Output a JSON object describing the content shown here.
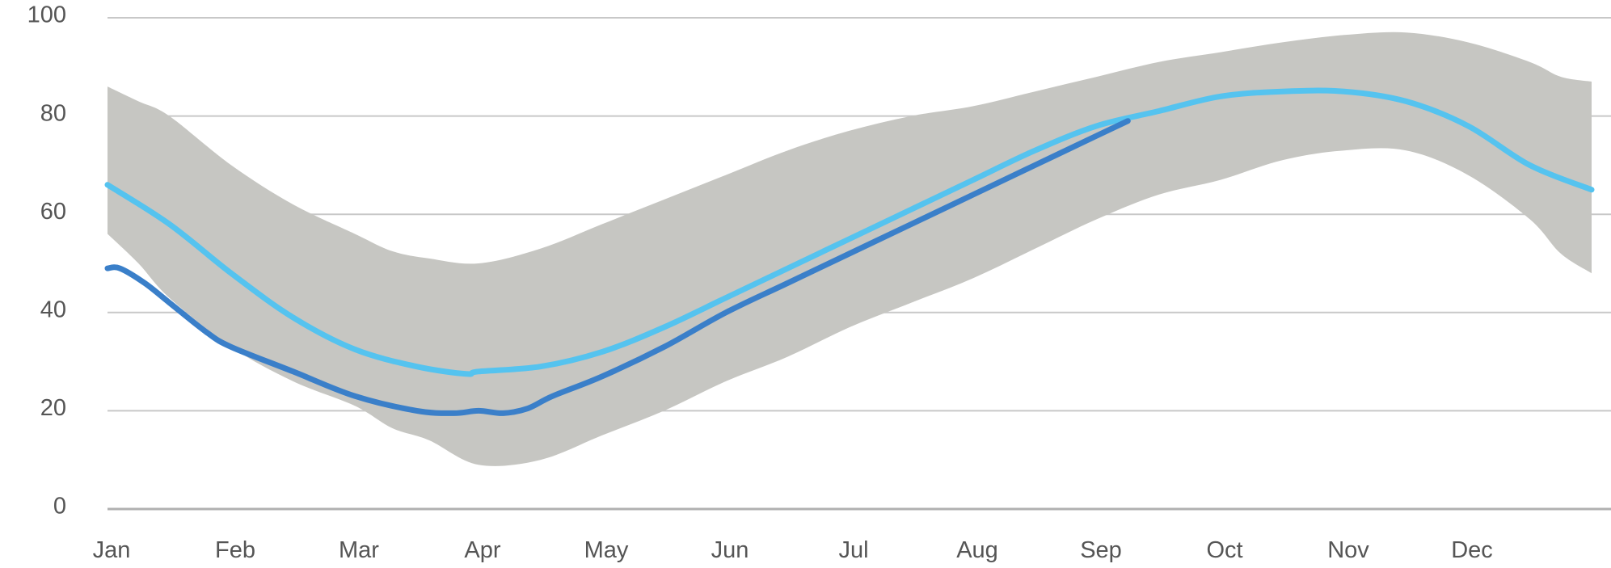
{
  "chart_data": {
    "type": "line",
    "title": "",
    "xlabel": "",
    "ylabel": "",
    "x_ticks": [
      "Jan",
      "Feb",
      "Mar",
      "Apr",
      "May",
      "Jun",
      "Jul",
      "Aug",
      "Sep",
      "Oct",
      "Nov",
      "Dec"
    ],
    "y_ticks": [
      0,
      20,
      40,
      60,
      80,
      100
    ],
    "xlim": [
      0,
      12
    ],
    "ylim": [
      0,
      100
    ],
    "grid": "horizontal",
    "legend": "none",
    "colors": {
      "band": "#c6c6c2",
      "series_1": "#55c3ef",
      "series_2": "#3a7fc9",
      "grid": "#c8c8c8",
      "text": "#555555"
    },
    "band": {
      "x": [
        0,
        0.25,
        0.5,
        1,
        1.5,
        2,
        2.3,
        2.6,
        3,
        3.5,
        4,
        4.5,
        5,
        5.5,
        6,
        6.5,
        7,
        7.5,
        8,
        8.5,
        9,
        9.5,
        10,
        10.5,
        11,
        11.5,
        11.75,
        12
      ],
      "upper": [
        86,
        83,
        80,
        70,
        62,
        56,
        52.5,
        51,
        50,
        53,
        58,
        63,
        68,
        73,
        77,
        80,
        82,
        85,
        88,
        91,
        93,
        95,
        96.5,
        97,
        95,
        91,
        88,
        87
      ],
      "lower": [
        56,
        50,
        43,
        33,
        26,
        21,
        16.5,
        14,
        9,
        10,
        15,
        20,
        26,
        31,
        37,
        42,
        47,
        53,
        59,
        64,
        67,
        71,
        73,
        73,
        68,
        59,
        52,
        48
      ]
    },
    "series": [
      {
        "x": [
          0,
          0.5,
          1,
          1.5,
          2,
          2.5,
          2.9,
          3,
          3.5,
          4,
          4.5,
          5,
          5.5,
          6,
          6.5,
          7,
          7.5,
          8,
          8.5,
          9,
          9.5,
          10,
          10.5,
          11,
          11.5,
          12
        ],
        "values": [
          66,
          58,
          48,
          39,
          32.5,
          29,
          27.5,
          28,
          29,
          32,
          37,
          43,
          49,
          55,
          61,
          67,
          73,
          78,
          81,
          84,
          85,
          85,
          83,
          78,
          70,
          65
        ]
      },
      {
        "x": [
          0,
          0.1,
          0.3,
          0.5,
          0.8,
          1,
          1.5,
          2,
          2.5,
          2.8,
          3,
          3.2,
          3.4,
          3.6,
          4,
          4.5,
          5,
          5.5,
          6,
          6.5,
          7,
          7.5,
          8,
          8.25
        ],
        "values": [
          49,
          49,
          46,
          42,
          36,
          33,
          28,
          23,
          20,
          19.5,
          20,
          19.5,
          20.5,
          23,
          27,
          33,
          40,
          46,
          52,
          58,
          64,
          70,
          76,
          79
        ]
      }
    ]
  }
}
